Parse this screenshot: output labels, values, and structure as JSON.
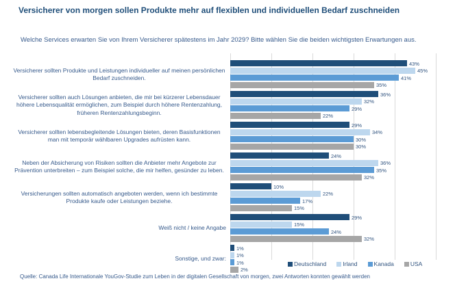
{
  "header": {
    "title": "Versicherer von morgen sollen Produkte mehr auf flexiblen und individuellen Bedarf zuschneiden",
    "subtitle": "Welche Services erwarten Sie von Ihrem Versicherer spätestens im Jahr 2029? Bitte wählen Sie die beiden wichtigsten Erwartungen aus."
  },
  "chart_data": {
    "type": "bar",
    "orientation": "horizontal",
    "unit": "%",
    "xlim": [
      0,
      50
    ],
    "gridline_step": 10,
    "grid": true,
    "legend_position": "bottom-right",
    "categories": [
      "Versicherer sollten Produkte und Leistungen individueller auf meinen persönlichen Bedarf zuschneiden.",
      "Versicherer sollten auch Lösungen anbieten, die mir bei kürzerer Lebensdauer höhere Lebensqualität ermöglichen, zum Beispiel durch höhere Rentenzahlung, früheren Rentenzahlungsbeginn.",
      "Versicherer sollten lebensbegleitende Lösungen bieten, deren Basisfunktionen man mit temporär wählbaren Upgrades aufrüsten kann.",
      "Neben der Absicherung von Risiken sollten die Anbieter mehr Angebote zur Prävention unterbreiten – zum Beispiel solche, die mir helfen, gesünder zu leben.",
      "Versicherungen sollten automatisch angeboten werden, wenn ich bestimmte Produkte kaufe oder Leistungen beziehe.",
      "Weiß nicht / keine Angabe",
      "Sonstige, und zwar:"
    ],
    "series": [
      {
        "name": "Deutschland",
        "color": "#1F4E79",
        "values": [
          43,
          36,
          29,
          24,
          10,
          29,
          1
        ]
      },
      {
        "name": "Irland",
        "color": "#BDD7EE",
        "values": [
          45,
          32,
          34,
          36,
          22,
          15,
          1
        ]
      },
      {
        "name": "Kanada",
        "color": "#5B9BD5",
        "values": [
          41,
          29,
          30,
          35,
          17,
          24,
          1
        ]
      },
      {
        "name": "USA",
        "color": "#A6A6A6",
        "values": [
          35,
          22,
          30,
          32,
          15,
          32,
          2
        ]
      }
    ]
  },
  "footer": {
    "source": "Quelle: Canada Life Internationale YouGov-Studie zum Leben in der digitalen Gesellschaft von morgen, zwei Antworten konnten gewählt werden"
  },
  "colors": {
    "title_text": "#1F4E79",
    "body_text": "#35598B",
    "gridline": "#D9D9D9",
    "background": "#FFFFFF"
  }
}
